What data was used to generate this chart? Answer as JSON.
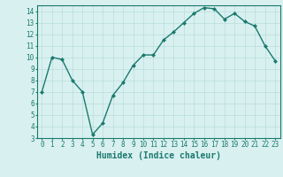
{
  "x": [
    0,
    1,
    2,
    3,
    4,
    5,
    6,
    7,
    8,
    9,
    10,
    11,
    12,
    13,
    14,
    15,
    16,
    17,
    18,
    19,
    20,
    21,
    22,
    23
  ],
  "y": [
    7.0,
    10.0,
    9.8,
    8.0,
    7.0,
    3.3,
    4.3,
    6.7,
    7.8,
    9.3,
    10.2,
    10.2,
    11.5,
    12.2,
    13.0,
    13.8,
    14.3,
    14.2,
    13.3,
    13.8,
    13.1,
    12.7,
    11.0,
    9.7
  ],
  "xlabel": "Humidex (Indice chaleur)",
  "line_color": "#1a7a6e",
  "marker": "D",
  "marker_size": 2.0,
  "bg_color": "#d9f0f0",
  "grid_color": "#b8dcdc",
  "xlim": [
    -0.5,
    23.5
  ],
  "ylim": [
    3,
    14.5
  ],
  "yticks": [
    3,
    4,
    5,
    6,
    7,
    8,
    9,
    10,
    11,
    12,
    13,
    14
  ],
  "xticks": [
    0,
    1,
    2,
    3,
    4,
    5,
    6,
    7,
    8,
    9,
    10,
    11,
    12,
    13,
    14,
    15,
    16,
    17,
    18,
    19,
    20,
    21,
    22,
    23
  ],
  "tick_label_fontsize": 5.5,
  "xlabel_fontsize": 7.0,
  "line_width": 1.0
}
